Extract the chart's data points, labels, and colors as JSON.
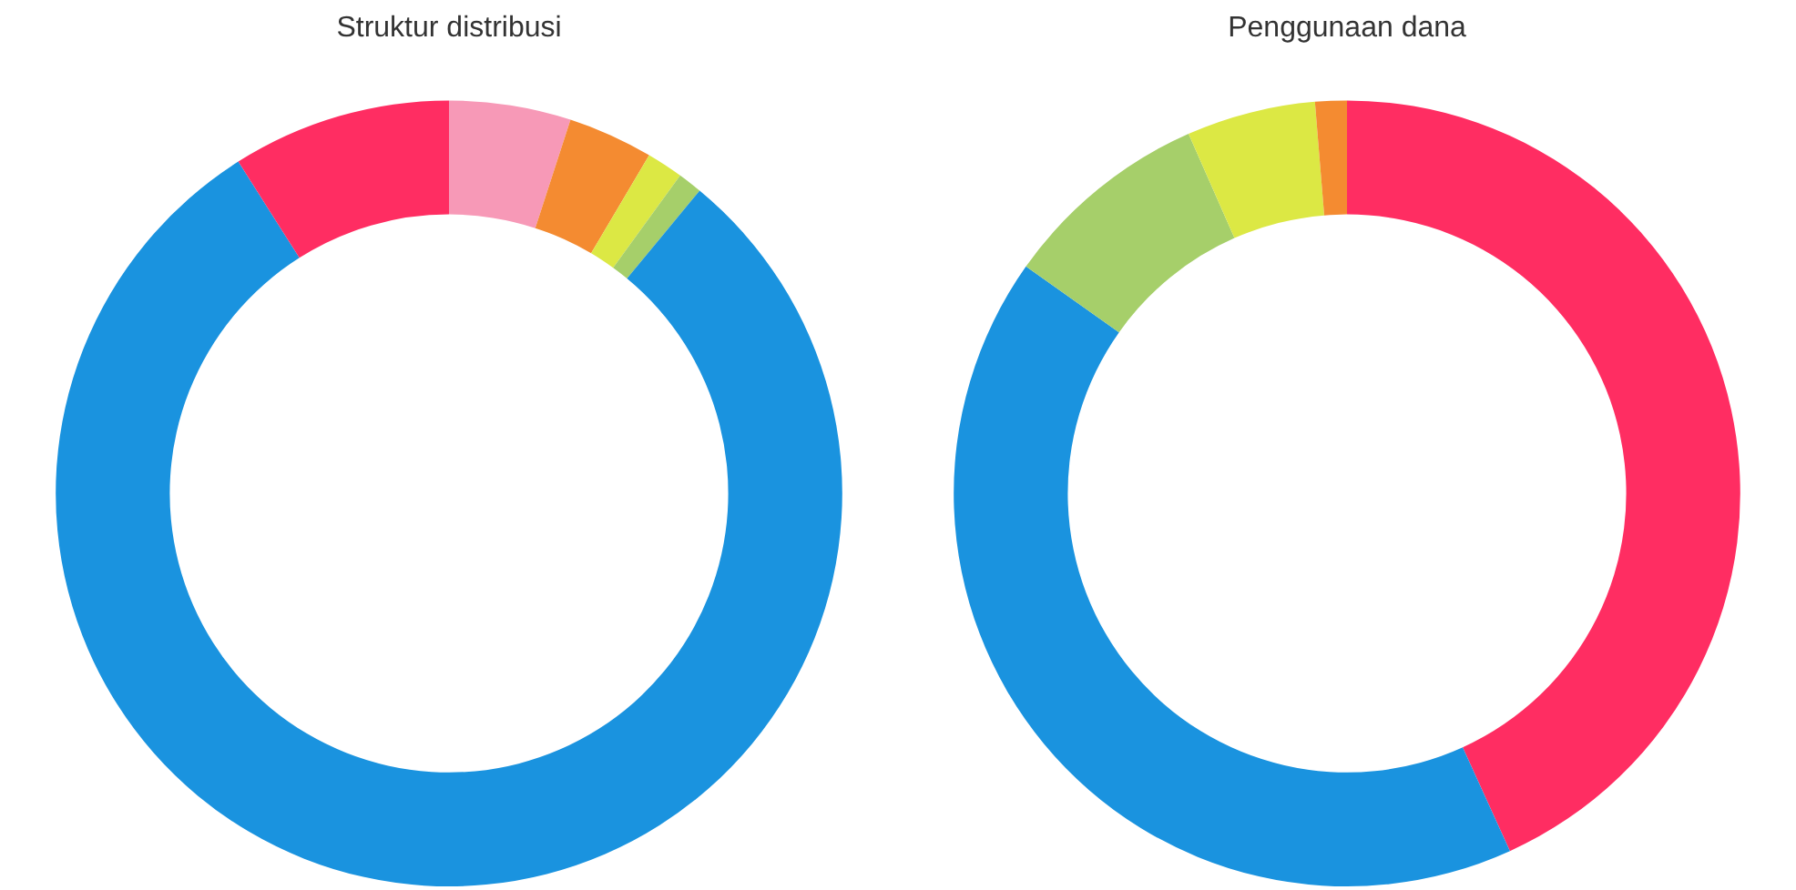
{
  "chart_data": [
    {
      "type": "donut",
      "title": "Struktur distribusi",
      "categories": [
        null,
        null,
        null,
        null,
        null,
        null
      ],
      "values": [
        5,
        3.5,
        1.5,
        1,
        80,
        9
      ],
      "colors": [
        "#f799b7",
        "#f48b31",
        "#dce844",
        "#a6cf6a",
        "#1a93df",
        "#ff2d62"
      ],
      "legend": false
    },
    {
      "type": "donut",
      "title": "Penggunaan dana",
      "categories": [
        null,
        null,
        null,
        null,
        null
      ],
      "values": [
        43.2,
        41.6,
        8.6,
        5.3,
        1.3
      ],
      "colors": [
        "#ff2d62",
        "#1a93df",
        "#a6cf6a",
        "#dce844",
        "#f48b31"
      ],
      "legend": false
    }
  ]
}
